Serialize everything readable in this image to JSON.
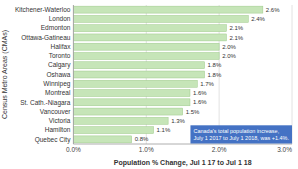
{
  "chart_data": {
    "type": "bar",
    "orientation": "horizontal",
    "categories": [
      "Kitchener-Waterloo",
      "London",
      "Edmonton",
      "Ottawa-Gatineau",
      "Halifax",
      "Toronto",
      "Calgary",
      "Oshawa",
      "Winnipeg",
      "Montreal",
      "St. Cath.-Niagara",
      "Vancouver",
      "Victoria",
      "Hamilton",
      "Quebec City"
    ],
    "values": [
      2.6,
      2.4,
      2.1,
      2.1,
      2.0,
      2.0,
      1.8,
      1.8,
      1.7,
      1.6,
      1.6,
      1.5,
      1.3,
      1.1,
      0.8
    ],
    "value_labels": [
      "2.6%",
      "2.4%",
      "2.1%",
      "2.1%",
      "2.0%",
      "2.0%",
      "1.8%",
      "1.8%",
      "1.7%",
      "1.6%",
      "1.6%",
      "1.5%",
      "1.3%",
      "1.1%",
      "0.8%"
    ],
    "data_labels": true,
    "color": "#c6e5b8",
    "xlabel": "Population % Change, Jul 1 17 to Jul 1 18",
    "ylabel": "Census Metro Areas (CMAs)",
    "xlim": [
      0,
      3.0
    ],
    "xticks": [
      {
        "value": 0.0,
        "label": "0.0%"
      },
      {
        "value": 1.0,
        "label": "1.0%"
      },
      {
        "value": 2.0,
        "label": "2.0%"
      },
      {
        "value": 3.0,
        "label": "3.0%"
      }
    ],
    "grid": true,
    "annotation": "Canada's total population increase,\nJuly 1 2017 to July 1 2018, was +1.4%."
  }
}
